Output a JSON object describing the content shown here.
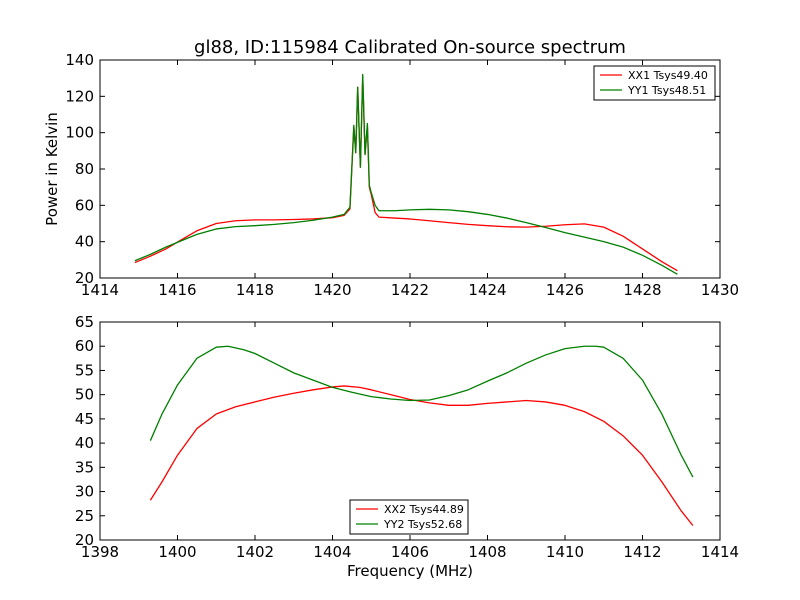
{
  "chart_data": [
    {
      "type": "line",
      "title": "gl88, ID:115984 Calibrated On-source spectrum",
      "xlabel": "",
      "ylabel": "Power in Kelvin",
      "xlim": [
        1414,
        1430
      ],
      "ylim": [
        20,
        140
      ],
      "xticks": [
        "1414",
        "1416",
        "1418",
        "1420",
        "1422",
        "1424",
        "1426",
        "1428",
        "1430"
      ],
      "yticks": [
        "20",
        "40",
        "60",
        "80",
        "100",
        "120",
        "140"
      ],
      "legend_position": "top-right",
      "series": [
        {
          "name": "XX1 Tsys49.40",
          "color": "#ff0000",
          "points": [
            [
              1414.9,
              28.5
            ],
            [
              1415.3,
              32
            ],
            [
              1415.7,
              36
            ],
            [
              1416.1,
              41
            ],
            [
              1416.5,
              46
            ],
            [
              1417.0,
              50
            ],
            [
              1417.5,
              51.5
            ],
            [
              1418.0,
              52
            ],
            [
              1418.5,
              52
            ],
            [
              1419.0,
              52.2
            ],
            [
              1419.5,
              52.5
            ],
            [
              1420.0,
              53.2
            ],
            [
              1420.3,
              54.5
            ],
            [
              1420.45,
              58
            ],
            [
              1420.55,
              103
            ],
            [
              1420.6,
              89
            ],
            [
              1420.65,
              125
            ],
            [
              1420.72,
              81
            ],
            [
              1420.78,
              131
            ],
            [
              1420.84,
              88
            ],
            [
              1420.9,
              104
            ],
            [
              1420.95,
              70
            ],
            [
              1421.0,
              66
            ],
            [
              1421.1,
              56
            ],
            [
              1421.2,
              53.5
            ],
            [
              1421.6,
              53
            ],
            [
              1422.0,
              52.5
            ],
            [
              1422.5,
              51.5
            ],
            [
              1423.0,
              50.5
            ],
            [
              1423.5,
              49.5
            ],
            [
              1424.0,
              48.8
            ],
            [
              1424.5,
              48.2
            ],
            [
              1425.0,
              48
            ],
            [
              1425.5,
              48.5
            ],
            [
              1426.0,
              49.3
            ],
            [
              1426.5,
              49.8
            ],
            [
              1427.0,
              48
            ],
            [
              1427.5,
              43
            ],
            [
              1428.0,
              36
            ],
            [
              1428.5,
              29
            ],
            [
              1428.9,
              24
            ]
          ]
        },
        {
          "name": "YY1 Tsys48.51",
          "color": "#008000",
          "points": [
            [
              1414.9,
              29.5
            ],
            [
              1415.3,
              33
            ],
            [
              1415.7,
              37
            ],
            [
              1416.1,
              40.5
            ],
            [
              1416.5,
              44
            ],
            [
              1417.0,
              47
            ],
            [
              1417.5,
              48.3
            ],
            [
              1418.0,
              48.8
            ],
            [
              1418.5,
              49.5
            ],
            [
              1419.0,
              50.5
            ],
            [
              1419.5,
              51.8
            ],
            [
              1420.0,
              53.5
            ],
            [
              1420.3,
              55
            ],
            [
              1420.45,
              59
            ],
            [
              1420.55,
              104
            ],
            [
              1420.6,
              89
            ],
            [
              1420.65,
              125
            ],
            [
              1420.72,
              81
            ],
            [
              1420.78,
              132
            ],
            [
              1420.84,
              88
            ],
            [
              1420.9,
              105
            ],
            [
              1420.95,
              71
            ],
            [
              1421.0,
              67
            ],
            [
              1421.1,
              60
            ],
            [
              1421.2,
              57
            ],
            [
              1421.6,
              57
            ],
            [
              1422.0,
              57.5
            ],
            [
              1422.5,
              57.8
            ],
            [
              1423.0,
              57.5
            ],
            [
              1423.5,
              56.5
            ],
            [
              1424.0,
              55
            ],
            [
              1424.5,
              53
            ],
            [
              1425.0,
              50.5
            ],
            [
              1425.5,
              47.8
            ],
            [
              1426.0,
              45
            ],
            [
              1426.5,
              42.5
            ],
            [
              1427.0,
              40
            ],
            [
              1427.5,
              37
            ],
            [
              1428.0,
              32.5
            ],
            [
              1428.5,
              27
            ],
            [
              1428.9,
              22
            ]
          ]
        }
      ]
    },
    {
      "type": "line",
      "title": "",
      "xlabel": "Frequency (MHz)",
      "ylabel": "",
      "xlim": [
        1398,
        1414
      ],
      "ylim": [
        20,
        65
      ],
      "xticks": [
        "1398",
        "1400",
        "1402",
        "1404",
        "1406",
        "1408",
        "1410",
        "1412",
        "1414"
      ],
      "yticks": [
        "20",
        "25",
        "30",
        "35",
        "40",
        "45",
        "50",
        "55",
        "60",
        "65"
      ],
      "legend_position": "bottom-center",
      "series": [
        {
          "name": "XX2 Tsys44.89",
          "color": "#ff0000",
          "points": [
            [
              1399.3,
              28.2
            ],
            [
              1399.6,
              32
            ],
            [
              1400.0,
              37.5
            ],
            [
              1400.5,
              43
            ],
            [
              1401.0,
              46
            ],
            [
              1401.5,
              47.5
            ],
            [
              1402.0,
              48.5
            ],
            [
              1402.5,
              49.5
            ],
            [
              1403.0,
              50.3
            ],
            [
              1403.5,
              51
            ],
            [
              1404.0,
              51.6
            ],
            [
              1404.3,
              51.8
            ],
            [
              1404.7,
              51.5
            ],
            [
              1405.0,
              51
            ],
            [
              1405.5,
              50
            ],
            [
              1406.0,
              49
            ],
            [
              1406.5,
              48.3
            ],
            [
              1407.0,
              47.8
            ],
            [
              1407.5,
              47.8
            ],
            [
              1408.0,
              48.2
            ],
            [
              1408.5,
              48.5
            ],
            [
              1409.0,
              48.8
            ],
            [
              1409.5,
              48.5
            ],
            [
              1410.0,
              47.8
            ],
            [
              1410.5,
              46.5
            ],
            [
              1411.0,
              44.5
            ],
            [
              1411.5,
              41.5
            ],
            [
              1412.0,
              37.5
            ],
            [
              1412.5,
              32
            ],
            [
              1413.0,
              26
            ],
            [
              1413.3,
              23
            ]
          ]
        },
        {
          "name": "YY2 Tsys52.68",
          "color": "#008000",
          "points": [
            [
              1399.3,
              40.5
            ],
            [
              1399.6,
              46
            ],
            [
              1400.0,
              52
            ],
            [
              1400.5,
              57.5
            ],
            [
              1401.0,
              59.8
            ],
            [
              1401.3,
              60
            ],
            [
              1401.7,
              59.3
            ],
            [
              1402.0,
              58.5
            ],
            [
              1402.5,
              56.5
            ],
            [
              1403.0,
              54.5
            ],
            [
              1403.5,
              53
            ],
            [
              1404.0,
              51.5
            ],
            [
              1404.5,
              50.5
            ],
            [
              1405.0,
              49.6
            ],
            [
              1405.5,
              49.1
            ],
            [
              1406.0,
              48.8
            ],
            [
              1406.5,
              48.9
            ],
            [
              1407.0,
              49.8
            ],
            [
              1407.5,
              51
            ],
            [
              1408.0,
              52.8
            ],
            [
              1408.5,
              54.5
            ],
            [
              1409.0,
              56.5
            ],
            [
              1409.5,
              58.2
            ],
            [
              1410.0,
              59.5
            ],
            [
              1410.5,
              60
            ],
            [
              1410.8,
              60
            ],
            [
              1411.0,
              59.8
            ],
            [
              1411.5,
              57.5
            ],
            [
              1412.0,
              53
            ],
            [
              1412.5,
              46
            ],
            [
              1413.0,
              37.5
            ],
            [
              1413.3,
              33
            ]
          ]
        }
      ]
    }
  ]
}
